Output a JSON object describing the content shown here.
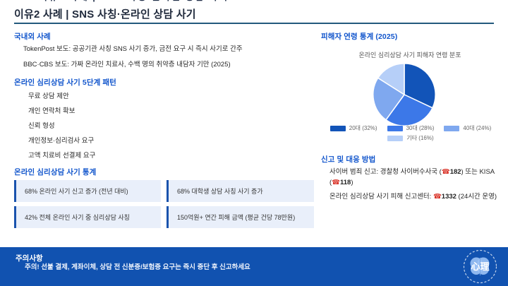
{
  "slide": {
    "top_clipped_text": "이유2 사례 | SNS 사칭·온라인 상담 사기",
    "title": "이유2 사례 | SNS 사칭·온라인 상담 사기"
  },
  "sections": {
    "cases": {
      "heading": "국내외 사례",
      "items": [
        "TokenPost 보도: 공공기관 사칭 SNS 사기 증가, 금전 요구 시 즉시 사기로 간주",
        "BBC·CBS 보도: 가짜 온라인 치료사, 수백 명의 취약층 내담자 기만 (2025)"
      ]
    },
    "pattern": {
      "heading": "온라인 심리상담 사기 5단계 패턴",
      "items": [
        "무료 상담 제안",
        "개인 연락처 확보",
        "신뢰 형성",
        "개인정보·심리검사 요구",
        "고액 치료비 선결제 요구"
      ]
    },
    "stats": {
      "heading": "온라인 심리상담 사기 통계",
      "items": [
        "68% 온라인 사기 신고 증가 (전년 대비)",
        "68% 대학생 상담 사칭 사기 증가",
        "42% 전체 온라인 사기 중 심리상담 사칭",
        "150억원+ 연간 피해 금액 (평균 건당 78만원)"
      ]
    },
    "victims": {
      "heading": "피해자 연령 통계 (2025)"
    },
    "report": {
      "heading": "신고 및 대응 방법",
      "items": [
        {
          "pre": "사이버 범죄 신고: 경찰청 사이버수사국 (",
          "icon1": "☎",
          "num1": "182",
          "mid": ") 또는 KISA (",
          "icon2": "☎",
          "num2": "118",
          "post": ")"
        },
        {
          "pre": "온라인 심리상담 사기 피해 신고센터: ",
          "icon1": "☎",
          "num1": "1332",
          "mid": " (24시간 운영)",
          "icon2": "",
          "num2": "",
          "post": ""
        }
      ]
    }
  },
  "footer": {
    "heading": "주의사항",
    "text": "주의! 선불 결제, 계좌이체, 상담 전 신분증/보험증 요구는 즉시 중단 후 신고하세요",
    "logo_text": "心理"
  },
  "chart_data": {
    "type": "pie",
    "title": "온라인 심리상담 사기 피해자 연령 분포",
    "categories": [
      "20대",
      "30대",
      "40대",
      "기타"
    ],
    "values": [
      32,
      28,
      24,
      16
    ],
    "labels": [
      "20대 (32%)",
      "30대 (28%)",
      "40대 (24%)",
      "기타 (16%)"
    ],
    "colors": [
      "#1254b8",
      "#3c78e8",
      "#7fa8ef",
      "#b6cff8"
    ],
    "legend_position": "bottom",
    "start_angle_deg": 0,
    "direction": "clockwise"
  },
  "colors": {
    "heading_blue": "#1155cc",
    "title_dark": "#202a3c",
    "title_underline": "#235a7d",
    "stat_box_bg": "#e9effa",
    "stat_box_border": "#1a53ad",
    "footer_bg": "#1152b0",
    "phone_red": "#d93025"
  }
}
